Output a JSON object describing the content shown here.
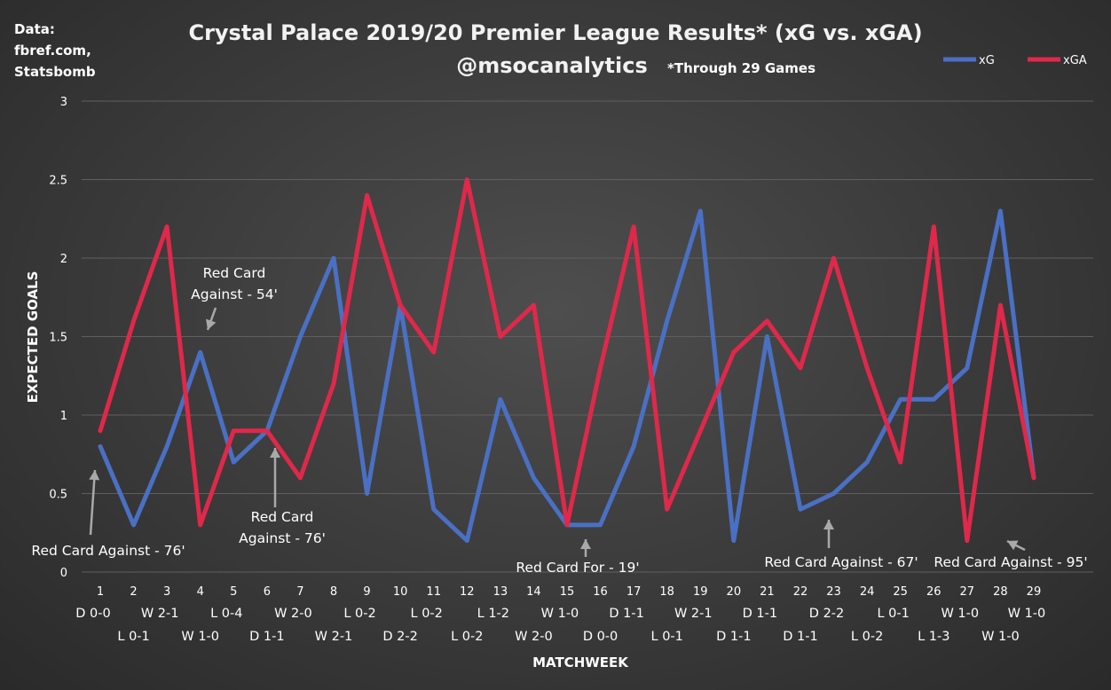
{
  "source": {
    "lines": [
      "Data:",
      "fbref.com,",
      "Statsbomb"
    ]
  },
  "chart_data": {
    "type": "line",
    "title": "Crystal Palace 2019/20 Premier League Results* (xG vs. xGA)",
    "subtitle": "@msocanalytics",
    "footnote": "*Through 29 Games",
    "xlabel": "MATCHWEEK",
    "ylabel": "EXPECTED GOALS",
    "ylim": [
      0,
      3
    ],
    "yticks": [
      0,
      0.5,
      1,
      1.5,
      2,
      2.5,
      3
    ],
    "ytick_labels": [
      "0",
      "0.5",
      "1",
      "1.5",
      "2",
      "2.5",
      "3"
    ],
    "grid": true,
    "legend_position": "top-right",
    "categories": [
      "1",
      "2",
      "3",
      "4",
      "5",
      "6",
      "7",
      "8",
      "9",
      "10",
      "11",
      "12",
      "13",
      "14",
      "15",
      "16",
      "17",
      "18",
      "19",
      "20",
      "21",
      "22",
      "23",
      "24",
      "25",
      "26",
      "27",
      "28",
      "29"
    ],
    "results": [
      "D 0-0",
      "L 0-1",
      "W 2-1",
      "W 1-0",
      "L 0-4",
      "D 1-1",
      "W 2-0",
      "W 2-1",
      "L 0-2",
      "D 2-2",
      "L 0-2",
      "L 0-2",
      "L 1-2",
      "W 2-0",
      "W 1-0",
      "D 0-0",
      "D 1-1",
      "L 0-1",
      "W 2-1",
      "D 1-1",
      "D 1-1",
      "D 1-1",
      "D 2-2",
      "L 0-2",
      "L 0-1",
      "L 1-3",
      "W 1-0",
      "W 1-0",
      "W 1-0"
    ],
    "series": [
      {
        "name": "xG",
        "color": "#4a70c4",
        "values": [
          0.8,
          0.3,
          0.8,
          1.4,
          0.7,
          0.9,
          1.5,
          2.0,
          0.5,
          1.7,
          0.4,
          0.2,
          1.1,
          0.6,
          0.3,
          0.3,
          0.8,
          1.6,
          2.3,
          0.2,
          1.5,
          0.4,
          0.5,
          0.7,
          1.1,
          1.1,
          1.3,
          2.3,
          0.6
        ]
      },
      {
        "name": "xGA",
        "color": "#e0284a",
        "values": [
          0.9,
          1.6,
          2.2,
          0.3,
          0.9,
          0.9,
          0.6,
          1.2,
          2.4,
          1.7,
          1.4,
          2.5,
          1.5,
          1.7,
          0.3,
          1.3,
          2.2,
          0.4,
          0.9,
          1.4,
          1.6,
          1.3,
          2.0,
          1.3,
          0.7,
          2.2,
          0.2,
          1.7,
          0.6
        ]
      }
    ],
    "annotations": [
      {
        "lines": [
          "Red Card Against - 76'"
        ],
        "week": 1,
        "value": 0.8
      },
      {
        "lines": [
          "Red Card",
          "Against - 54'"
        ],
        "week": 4,
        "value": 1.4
      },
      {
        "lines": [
          "Red Card",
          "Against - 76'"
        ],
        "week": 6,
        "value": 0.9
      },
      {
        "lines": [
          "Red Card For - 19'"
        ],
        "week": 15,
        "value": 0.3
      },
      {
        "lines": [
          "Red Card Against - 67'"
        ],
        "week": 22,
        "value": 0.4
      },
      {
        "lines": [
          "Red Card Against - 95'"
        ],
        "week": 27,
        "value": 0.2
      }
    ]
  }
}
